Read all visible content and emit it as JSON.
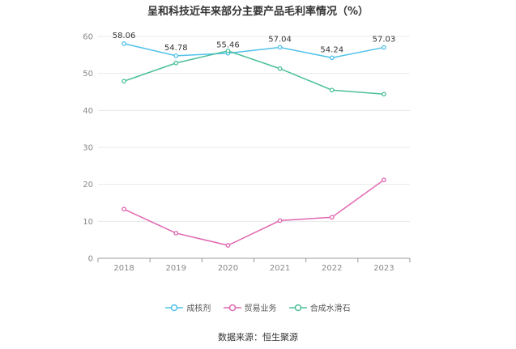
{
  "chart_data": {
    "type": "line",
    "title": "呈和科技近年来部分主要产品毛利率情况（%）",
    "categories": [
      "2018",
      "2019",
      "2020",
      "2021",
      "2022",
      "2023"
    ],
    "ylim": [
      0,
      60
    ],
    "yticks": [
      0,
      10,
      20,
      30,
      40,
      50,
      60
    ],
    "grid": true,
    "legend_position": "bottom",
    "series": [
      {
        "name": "成核剂",
        "color": "#4fc1e9",
        "values": [
          58.06,
          54.78,
          55.46,
          57.04,
          54.24,
          57.03
        ],
        "show_labels": true
      },
      {
        "name": "贸易业务",
        "color": "#e066b0",
        "values": [
          13.3,
          6.8,
          3.5,
          10.2,
          11.1,
          21.2
        ],
        "show_labels": false
      },
      {
        "name": "合成水滑石",
        "color": "#4bbf9a",
        "values": [
          47.9,
          52.8,
          56.1,
          51.3,
          45.5,
          44.4
        ],
        "show_labels": false
      }
    ],
    "source": "数据来源：恒生聚源"
  }
}
